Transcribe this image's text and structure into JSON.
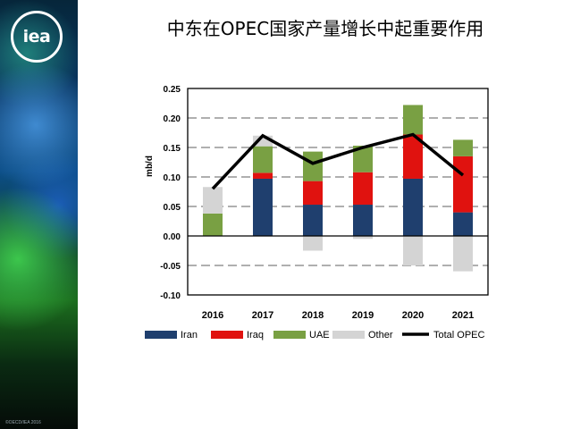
{
  "title": "中东在OPEC国家产量增长中起重要作用",
  "logo": {
    "text": "iea"
  },
  "copyright": "©OECD/IEA 2016",
  "chart_data": {
    "type": "bar",
    "stacked": true,
    "categories": [
      "2016",
      "2017",
      "2018",
      "2019",
      "2020",
      "2021"
    ],
    "series": [
      {
        "name": "Iran",
        "color": "#1f3f6e",
        "values": [
          0.0,
          0.097,
          0.053,
          0.053,
          0.097,
          0.04
        ]
      },
      {
        "name": "Iraq",
        "color": "#e0120f",
        "values": [
          0.0,
          0.01,
          0.04,
          0.055,
          0.075,
          0.095
        ]
      },
      {
        "name": "UAE",
        "color": "#79a043",
        "values": [
          0.038,
          0.045,
          0.05,
          0.045,
          0.05,
          0.028
        ]
      },
      {
        "name": "Other",
        "color": "#d4d4d4",
        "values": [
          0.045,
          0.018,
          -0.025,
          -0.005,
          -0.05,
          -0.06
        ]
      }
    ],
    "line": {
      "name": "Total OPEC",
      "color": "#000000",
      "values": [
        0.08,
        0.17,
        0.123,
        0.15,
        0.172,
        0.103
      ]
    },
    "ylabel": "mb/d",
    "ylim": [
      -0.1,
      0.25
    ],
    "yticks": [
      "0.25",
      "0.20",
      "0.15",
      "0.10",
      "0.05",
      "0.00",
      "-0.05",
      "-0.10"
    ],
    "yticks_values": [
      0.25,
      0.2,
      0.15,
      0.1,
      0.05,
      0.0,
      -0.05,
      -0.1
    ],
    "grid": "dashed horizontal",
    "legend_position": "bottom"
  }
}
